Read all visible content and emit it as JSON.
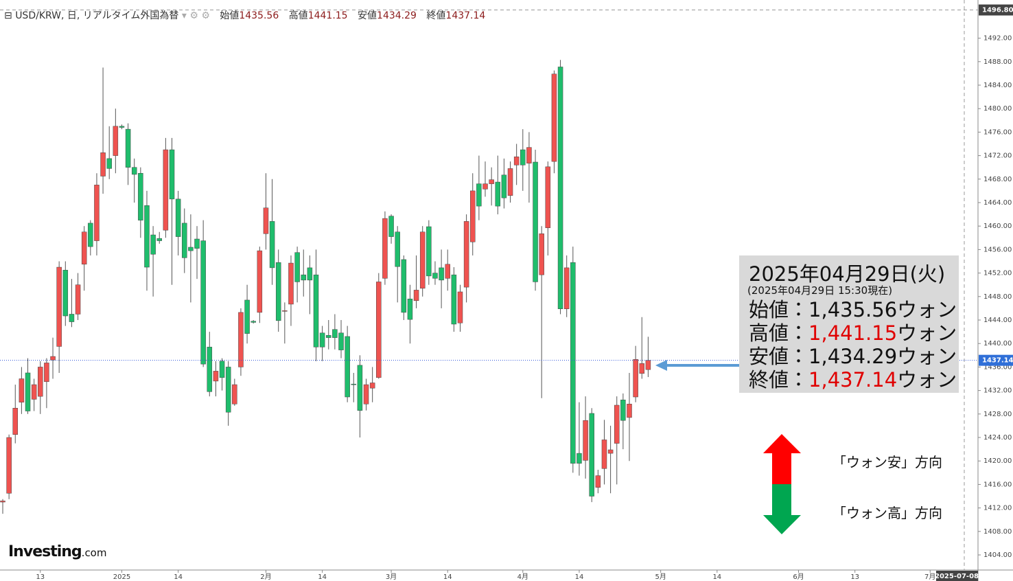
{
  "chart_data": {
    "type": "candlestick",
    "title": "USD/KRW, 日, リアルタイム外国為替",
    "ohlc_legend": [
      {
        "label": "始値",
        "value": 1435.56
      },
      {
        "label": "高値",
        "value": 1441.15
      },
      {
        "label": "安値",
        "value": 1434.29
      },
      {
        "label": "終値",
        "value": 1437.14
      }
    ],
    "categories": [
      null,
      null,
      null,
      null,
      null,
      null,
      "13",
      null,
      null,
      null,
      null,
      null,
      null,
      null,
      null,
      null,
      null,
      null,
      null,
      "2025",
      null,
      null,
      null,
      null,
      null,
      null,
      null,
      null,
      "14",
      null,
      null,
      null,
      null,
      null,
      null,
      null,
      null,
      null,
      null,
      null,
      null,
      null,
      "2月",
      null,
      null,
      null,
      null,
      null,
      null,
      null,
      null,
      "14",
      null,
      null,
      null,
      null,
      null,
      null,
      null,
      null,
      null,
      null,
      "3月",
      null,
      null,
      null,
      null,
      null,
      null,
      null,
      null,
      "14",
      null,
      null,
      null,
      null,
      null,
      null,
      null,
      null,
      null,
      null,
      null,
      "4月",
      null,
      null,
      null,
      null,
      null,
      null,
      null,
      null,
      "14",
      null,
      null,
      null,
      null,
      null,
      null,
      null,
      null,
      null,
      null,
      null,
      null,
      "5月",
      null,
      null,
      null,
      null,
      null,
      null,
      null,
      null,
      "14",
      null,
      null,
      null,
      null,
      null,
      null,
      null,
      null,
      null,
      null,
      null,
      null,
      "6月",
      null,
      null,
      null,
      null,
      null,
      null,
      null,
      null,
      "13",
      null,
      null,
      null,
      null,
      null,
      null,
      null,
      null,
      null,
      null,
      null,
      "7月",
      null,
      null,
      null,
      null,
      null,
      null
    ],
    "open": [
      1413,
      1414.5,
      1424.5,
      1430,
      1435,
      1430.5,
      1431,
      1433.5,
      1437.2,
      1439.5,
      1452.5,
      1445,
      1445,
      1453.5,
      1460.5,
      1457.5,
      1468.5,
      1471.5,
      1472,
      1477,
      1476.5,
      1470,
      1469,
      1463.5,
      1458.5,
      1457.9,
      1459.3,
      1473,
      1464.6,
      1460.5,
      1456.4,
      1457.8,
      1457.5,
      1439.4,
      1433.6,
      1437,
      1436,
      1429.7,
      1436,
      1447.4,
      1443.8,
      1445.3,
      1458.7,
      1460.8,
      1453.8,
      1445.5,
      1446.7,
      1455.5,
      1451.7,
      1452.9,
      1451.7,
      1441.8,
      1441.4,
      1442.4,
      1441.8,
      1441.2,
      1433.1,
      1436.3,
      1429.7,
      1432.4,
      1434.2,
      1451.1,
      1461.7,
      1459,
      1454.3,
      1447.6,
      1447.3,
      1449.4,
      1459.9,
      1452,
      1452.9,
      1451.1,
      1451.7,
      1443.5,
      1449.6,
      1457.3,
      1467.2,
      1466.3,
      1467.2,
      1467.5,
      1468.7,
      1465.2,
      1470.4,
      1473,
      1470.7,
      1470.9,
      1451.7,
      1459.7,
      1471,
      1487.1,
      1445.9,
      1453.8,
      1421.3,
      1420.1,
      1428.1,
      1415.5,
      1418.7,
      1421.3,
      1423,
      1430.4,
      1427.4,
      1430.9,
      1434.9,
      1435.56,
      null,
      null,
      null,
      null,
      null,
      null,
      null,
      null,
      null,
      null,
      null,
      null,
      null,
      null,
      null,
      null,
      null,
      null,
      null,
      null,
      null,
      null,
      null,
      null,
      null,
      null,
      null,
      null,
      null,
      null,
      null,
      null,
      null,
      null,
      null,
      null,
      null,
      null,
      null,
      null,
      null,
      null,
      null,
      null,
      null,
      null,
      null,
      null,
      null,
      null,
      null
    ],
    "high": [
      1413.5,
      1424.5,
      1433,
      1436,
      1437.5,
      1434,
      1437,
      1437.5,
      1441,
      1454,
      1454,
      1451,
      1452,
      1460,
      1461,
      1469,
      1487,
      1477,
      1480,
      1477.3,
      1477.5,
      1471.5,
      1470,
      1466,
      1460,
      1459,
      1475,
      1475,
      1466,
      1463,
      1462,
      1460,
      1461,
      1442,
      1437,
      1437.5,
      1437,
      1434,
      1446,
      1450,
      1444,
      1456.5,
      1469,
      1468,
      1456,
      1447,
      1455,
      1456.5,
      1456,
      1455,
      1456,
      1443,
      1444,
      1445,
      1444,
      1443,
      1435,
      1438,
      1434,
      1436,
      1452,
      1462.5,
      1462,
      1460,
      1455,
      1450,
      1455,
      1460,
      1461,
      1454,
      1456,
      1456,
      1453,
      1450,
      1462,
      1469,
      1472,
      1471,
      1470,
      1472,
      1471.5,
      1471,
      1474,
      1476.5,
      1476,
      1473,
      1460,
      1471,
      1486.5,
      1488.3,
      1455,
      1456.5,
      1430,
      1431,
      1429,
      1418.5,
      1427,
      1426,
      1431,
      1431.5,
      1435,
      1439.6,
      1444.5,
      1441.15,
      null,
      null,
      null,
      null,
      null,
      null,
      null,
      null,
      null,
      null,
      null,
      null,
      null,
      null,
      null,
      null,
      null,
      null,
      null,
      null,
      null,
      null,
      null,
      null,
      null,
      null,
      null,
      null,
      null,
      null,
      null,
      null,
      null,
      null,
      null,
      null,
      null,
      null,
      null,
      null,
      null,
      null,
      null,
      null,
      null,
      null,
      null,
      null,
      null,
      null,
      null
    ],
    "low": [
      1411,
      1413.5,
      1423,
      1428,
      1428,
      1428.5,
      1428,
      1429,
      1434,
      1435,
      1443,
      1442.8,
      1444,
      1449,
      1455,
      1455,
      1465.5,
      1468,
      1469,
      1476.5,
      1467,
      1464,
      1458,
      1449,
      1448,
      1457,
      1458,
      1450,
      1455,
      1452,
      1447,
      1451,
      1436,
      1431,
      1431,
      1432,
      1426,
      1429.4,
      1434.5,
      1440,
      1443.4,
      1443.5,
      1456,
      1450,
      1442,
      1440,
      1443,
      1447,
      1448,
      1445,
      1437,
      1437,
      1439,
      1439,
      1437.5,
      1430,
      1430,
      1424,
      1428.6,
      1430,
      1434,
      1450,
      1457,
      1447,
      1444,
      1440,
      1446,
      1448,
      1450,
      1450,
      1446,
      1449,
      1442,
      1442,
      1447,
      1455,
      1461,
      1465,
      1463.5,
      1462,
      1463,
      1464,
      1467,
      1466,
      1464,
      1449,
      1430.7,
      1455,
      1469,
      1445,
      1444.5,
      1418,
      1417.5,
      1417,
      1413,
      1414.5,
      1416,
      1414.5,
      1416,
      1422,
      1420,
      1430,
      1434,
      1434.29,
      null,
      null,
      null,
      null,
      null,
      null,
      null,
      null,
      null,
      null,
      null,
      null,
      null,
      null,
      null,
      null,
      null,
      null,
      null,
      null,
      null,
      null,
      null,
      null,
      null,
      null,
      null,
      null,
      null,
      null,
      null,
      null,
      null,
      null,
      null,
      null,
      null,
      null,
      null,
      null,
      null,
      null,
      null,
      null,
      null,
      null,
      null,
      null,
      null,
      null,
      null
    ],
    "close": [
      1413.2,
      1424,
      1429,
      1434,
      1428.5,
      1433,
      1436,
      1436.7,
      1437.8,
      1453,
      1444.7,
      1443.7,
      1450,
      1459,
      1456.5,
      1467,
      1472.5,
      1469.8,
      1477,
      1476.8,
      1470,
      1468.8,
      1461,
      1453,
      1455.2,
      1457.5,
      1473,
      1464.6,
      1458.2,
      1454.6,
      1455.8,
      1456.2,
      1436.5,
      1431.8,
      1435.3,
      1434.2,
      1428.3,
      1433,
      1445.3,
      1441.7,
      1443.6,
      1455.8,
      1463.1,
      1452.9,
      1443.9,
      1445.6,
      1453.7,
      1450.5,
      1450.8,
      1450.8,
      1439.4,
      1439.4,
      1441,
      1441,
      1438.9,
      1430.9,
      1433,
      1428.6,
      1433,
      1433.3,
      1450.5,
      1461.3,
      1458.2,
      1453.1,
      1445.3,
      1444.1,
      1449.1,
      1459,
      1451.5,
      1451.1,
      1450.8,
      1453.5,
      1443.3,
      1448.8,
      1460.8,
      1466,
      1463.4,
      1467.2,
      1467.9,
      1463.4,
      1464.8,
      1469.8,
      1471.8,
      1470.4,
      1473.4,
      1450.5,
      1458.7,
      1470.1,
      1485.9,
      1445.9,
      1452.9,
      1419.6,
      1419.6,
      1426.9,
      1414,
      1417.5,
      1423.6,
      1421.9,
      1429.5,
      1426.9,
      1429.7,
      1437.3,
      1436.6,
      1437.14,
      null,
      null,
      null,
      null,
      null,
      null,
      null,
      null,
      null,
      null,
      null,
      null,
      null,
      null,
      null,
      null,
      null,
      null,
      null,
      null,
      null,
      null,
      null,
      null,
      null,
      null,
      null,
      null,
      null,
      null,
      null,
      null,
      null,
      null,
      null,
      null,
      null,
      null,
      null,
      null,
      null,
      null,
      null,
      null,
      null,
      null,
      null,
      null,
      null,
      null,
      null
    ],
    "up_color": "#ef5350",
    "down_color": "#1fbd6c",
    "ylim": [
      1401.43,
      1498.5
    ],
    "yticks": [
      {
        "value": 1404,
        "label": "1404.00"
      },
      {
        "value": 1408,
        "label": "1408.00"
      },
      {
        "value": 1412,
        "label": "1412.00"
      },
      {
        "value": 1416,
        "label": "1416.00"
      },
      {
        "value": 1420,
        "label": "1420.00"
      },
      {
        "value": 1424,
        "label": "1424.00"
      },
      {
        "value": 1428,
        "label": "1428.00"
      },
      {
        "value": 1432,
        "label": "1432.00"
      },
      {
        "value": 1436,
        "label": "1436.00"
      },
      {
        "value": 1440,
        "label": "1440.00"
      },
      {
        "value": 1444,
        "label": "1444.00"
      },
      {
        "value": 1448,
        "label": "1448.00"
      },
      {
        "value": 1452,
        "label": "1452.00"
      },
      {
        "value": 1456,
        "label": "1456.00"
      },
      {
        "value": 1460,
        "label": "1460.00"
      },
      {
        "value": 1464,
        "label": "1464.00"
      },
      {
        "value": 1468,
        "label": "1468.00"
      },
      {
        "value": 1472,
        "label": "1472.00"
      },
      {
        "value": 1476,
        "label": "1476.00"
      },
      {
        "value": 1480,
        "label": "1480.00"
      },
      {
        "value": 1484,
        "label": "1484.00"
      },
      {
        "value": 1488,
        "label": "1488.00"
      },
      {
        "value": 1492,
        "label": "1492.00"
      }
    ],
    "last_value": 1437.14,
    "crosshair_value": {
      "value": 1496.8,
      "label": "1496.80"
    },
    "crosshair_date": "2025-07-08",
    "annotation": {
      "date": "2025年04月29日(火)",
      "asof": "(2025年04月29日 15:30現在)",
      "separator": "：",
      "unit": "ウォン",
      "rows": [
        {
          "label": "始値",
          "value": 1435.56,
          "value_label": "1,435.56",
          "color": "#111111"
        },
        {
          "label": "高値",
          "value": 1441.15,
          "value_label": "1,441.15",
          "color": "#e00000"
        },
        {
          "label": "安値",
          "value": 1434.29,
          "value_label": "1,434.29",
          "color": "#111111"
        },
        {
          "label": "終値",
          "value": 1437.14,
          "value_label": "1,437.14",
          "color": "#e00000"
        }
      ]
    },
    "direction_labels": {
      "up": "「ウォン安」方向",
      "down": "「ウォン高」方向"
    },
    "brand": "Investing",
    "brand_suffix": ".com"
  }
}
